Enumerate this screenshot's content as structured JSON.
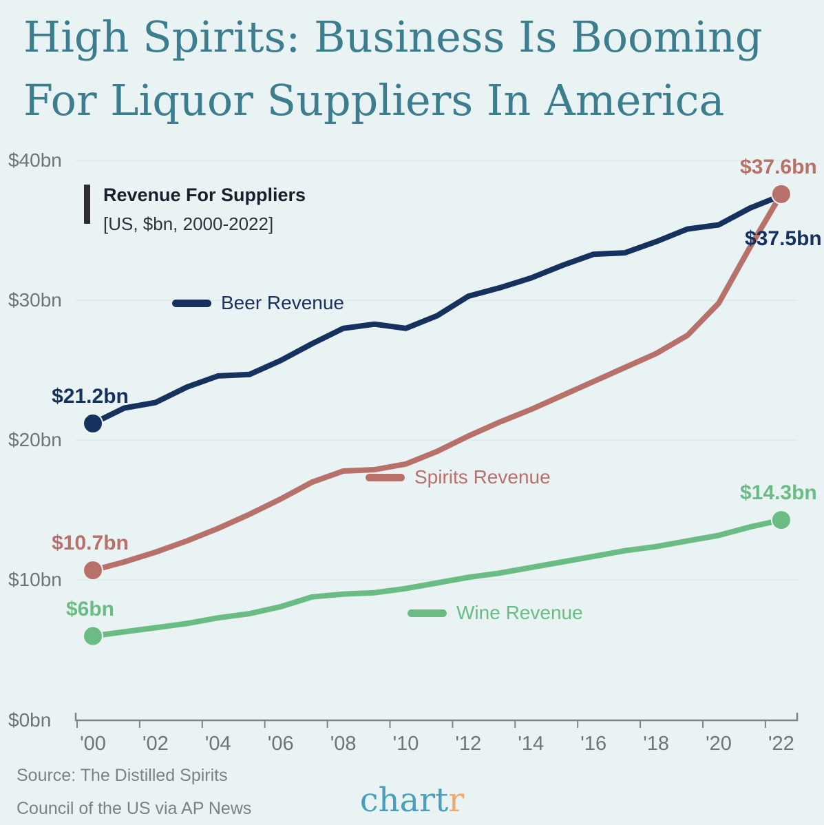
{
  "title": {
    "line1": "High Spirits: Business Is Booming",
    "line2": "For Liquor Suppliers In America"
  },
  "legend": {
    "title": "Revenue For Suppliers",
    "subtitle": "[US, $bn, 2000-2022]"
  },
  "footer": {
    "source_line1": "Source: The Distilled Spirits",
    "source_line2": "Council of the US via AP News",
    "logo_main": "chart",
    "logo_accent": "r"
  },
  "colors": {
    "background": "#e9f3f3",
    "title": "#3c7d8e",
    "axis_text": "#6e7477",
    "axis_line": "#7d8589",
    "gridline": "#dfeaea",
    "legend_bar": "#2d2d2d",
    "legend_text": "#16212b",
    "beer": "#17315e",
    "spirits": "#b8716a",
    "wine": "#6abc84",
    "logo_teal": "#4aa0bc",
    "logo_orange": "#f3a869"
  },
  "chart_data": {
    "type": "line",
    "title": "Revenue For Suppliers",
    "subtitle": "[US, $bn, 2000-2022]",
    "x": [
      2000,
      2001,
      2002,
      2003,
      2004,
      2005,
      2006,
      2007,
      2008,
      2009,
      2010,
      2011,
      2012,
      2013,
      2014,
      2015,
      2016,
      2017,
      2018,
      2019,
      2020,
      2021,
      2022
    ],
    "xtick_labels": [
      "'00",
      "'02",
      "'04",
      "'06",
      "'08",
      "'10",
      "'12",
      "'14",
      "'16",
      "'18",
      "'20",
      "'22"
    ],
    "ytick_values": [
      0,
      10,
      20,
      30,
      40
    ],
    "ytick_labels": [
      "$0bn",
      "$10bn",
      "$20bn",
      "$30bn",
      "$40bn"
    ],
    "ylim": [
      0,
      40
    ],
    "grid": "horizontal",
    "legend_position": "inline-labels",
    "series": [
      {
        "name": "Beer Revenue",
        "color": "#17315e",
        "start_label": "$21.2bn",
        "end_label": "$37.5bn",
        "end_label_position": "below",
        "end_dot": false,
        "values": [
          21.2,
          22.3,
          22.7,
          23.8,
          24.6,
          24.7,
          25.7,
          26.9,
          28.0,
          28.3,
          28.0,
          28.9,
          30.3,
          30.9,
          31.6,
          32.5,
          33.3,
          33.4,
          34.2,
          35.1,
          35.4,
          36.6,
          37.5
        ]
      },
      {
        "name": "Spirits Revenue",
        "color": "#b8716a",
        "start_label": "$10.7bn",
        "end_label": "$37.6bn",
        "end_label_position": "above",
        "end_dot": true,
        "values": [
          10.7,
          11.3,
          12.0,
          12.8,
          13.7,
          14.7,
          15.8,
          17.0,
          17.8,
          17.9,
          18.3,
          19.2,
          20.3,
          21.3,
          22.2,
          23.2,
          24.2,
          25.2,
          26.2,
          27.5,
          29.8,
          33.8,
          37.6
        ]
      },
      {
        "name": "Wine Revenue",
        "color": "#6abc84",
        "start_label": "$6bn",
        "end_label": "$14.3bn",
        "end_label_position": "above",
        "end_dot": true,
        "values": [
          6.0,
          6.3,
          6.6,
          6.9,
          7.3,
          7.6,
          8.1,
          8.8,
          9.0,
          9.1,
          9.4,
          9.8,
          10.2,
          10.5,
          10.9,
          11.3,
          11.7,
          12.1,
          12.4,
          12.8,
          13.2,
          13.8,
          14.3
        ]
      }
    ]
  }
}
